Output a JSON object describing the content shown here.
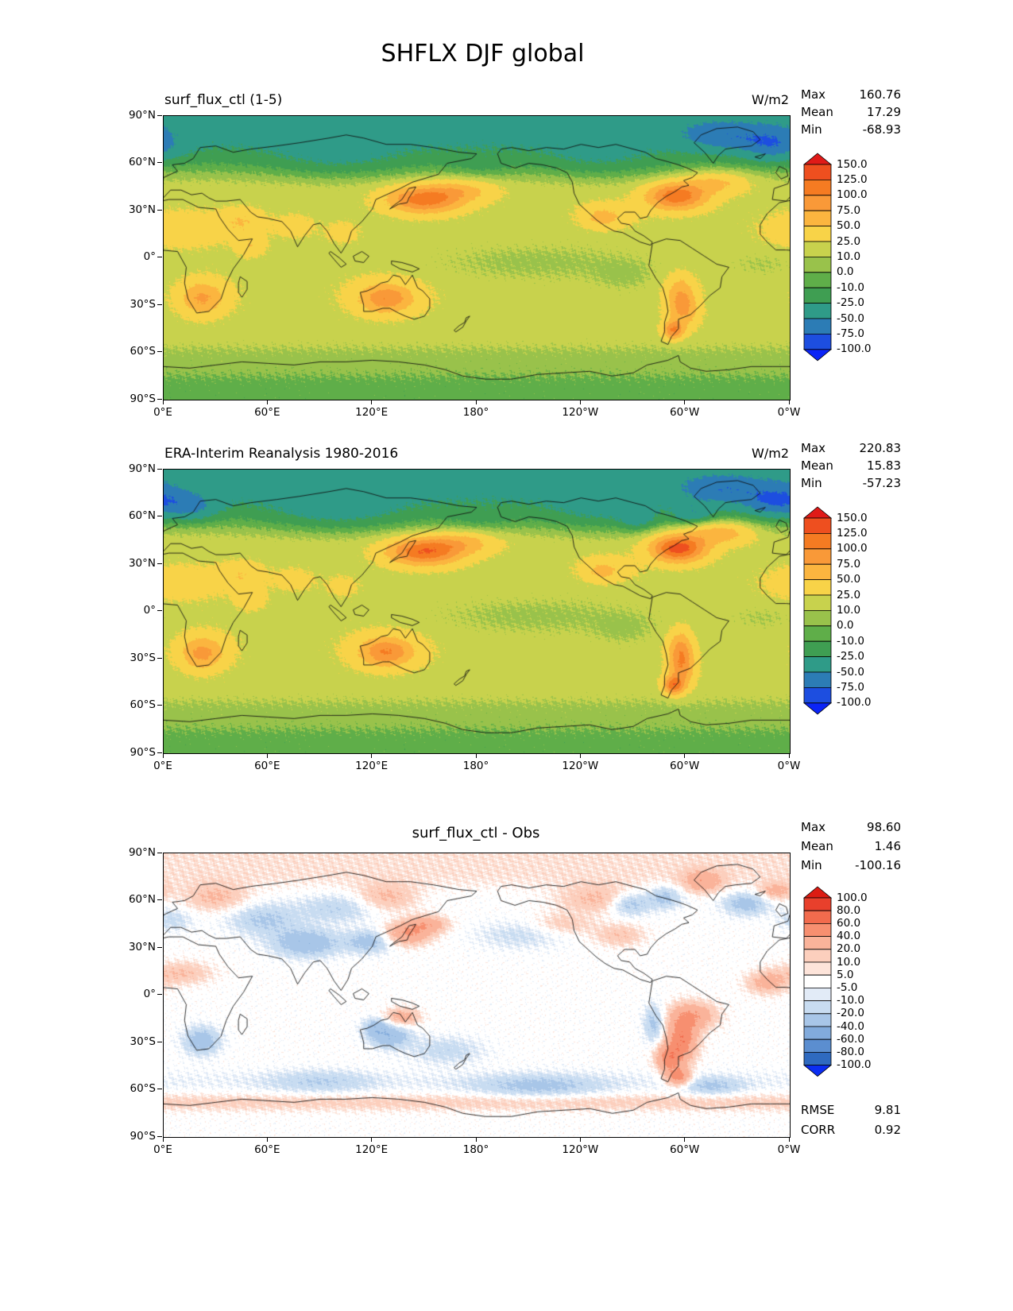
{
  "page": {
    "title": "SHFLX DJF global"
  },
  "chart_data": {
    "type": "heatmap",
    "subtype": "global lat-lon filled-contour maps, 3 stacked panels",
    "x_tick_labels": [
      "0°E",
      "60°E",
      "120°E",
      "180°",
      "120°W",
      "60°W",
      "0°W"
    ],
    "y_tick_labels": [
      "90°N",
      "60°N",
      "30°N",
      "0°",
      "30°S",
      "60°S",
      "90°S"
    ],
    "panels": [
      {
        "title": "surf_flux_ctl (1-5)",
        "units": "W/m2",
        "stats": [
          {
            "label": "Max",
            "value": "160.76"
          },
          {
            "label": "Mean",
            "value": "17.29"
          },
          {
            "label": "Min",
            "value": "-68.93"
          }
        ],
        "colorbar": {
          "tick_labels": [
            "150.0",
            "125.0",
            "100.0",
            "75.0",
            "50.0",
            "25.0",
            "10.0",
            "0.0",
            "-10.0",
            "-25.0",
            "-50.0",
            "-75.0",
            "-100.0"
          ],
          "tick_values": [
            150,
            125,
            100,
            75,
            50,
            25,
            10,
            0,
            -10,
            -25,
            -50,
            -75,
            -100
          ],
          "colors_top_to_bottom": [
            "#e01a18",
            "#ee4f1f",
            "#f57b22",
            "#f99938",
            "#fbb53f",
            "#f8d348",
            "#c8d24d",
            "#99c24b",
            "#5fae49",
            "#3f9e52",
            "#2f9b88",
            "#2c7cb5",
            "#1d4ee0",
            "#0b24f7"
          ]
        }
      },
      {
        "title": "ERA-Interim Reanalysis 1980-2016",
        "units": "W/m2",
        "stats": [
          {
            "label": "Max",
            "value": "220.83"
          },
          {
            "label": "Mean",
            "value": "15.83"
          },
          {
            "label": "Min",
            "value": "-57.23"
          }
        ],
        "colorbar": {
          "tick_labels": [
            "150.0",
            "125.0",
            "100.0",
            "75.0",
            "50.0",
            "25.0",
            "10.0",
            "0.0",
            "-10.0",
            "-25.0",
            "-50.0",
            "-75.0",
            "-100.0"
          ],
          "tick_values": [
            150,
            125,
            100,
            75,
            50,
            25,
            10,
            0,
            -10,
            -25,
            -50,
            -75,
            -100
          ],
          "colors_top_to_bottom": [
            "#e01a18",
            "#ee4f1f",
            "#f57b22",
            "#f99938",
            "#fbb53f",
            "#f8d348",
            "#c8d24d",
            "#99c24b",
            "#5fae49",
            "#3f9e52",
            "#2f9b88",
            "#2c7cb5",
            "#1d4ee0",
            "#0b24f7"
          ]
        }
      },
      {
        "title": "surf_flux_ctl - Obs",
        "units": "",
        "stats": [
          {
            "label": "Max",
            "value": "98.60"
          },
          {
            "label": "Mean",
            "value": "1.46"
          },
          {
            "label": "Min",
            "value": "-100.16"
          }
        ],
        "stats_bottom": [
          {
            "label": "RMSE",
            "value": "9.81"
          },
          {
            "label": "CORR",
            "value": "0.92"
          }
        ],
        "colorbar": {
          "tick_labels": [
            "100.0",
            "80.0",
            "60.0",
            "40.0",
            "20.0",
            "10.0",
            "5.0",
            "-5.0",
            "-10.0",
            "-20.0",
            "-40.0",
            "-60.0",
            "-80.0",
            "-100.0"
          ],
          "tick_values": [
            100,
            80,
            60,
            40,
            20,
            10,
            5,
            -5,
            -10,
            -20,
            -40,
            -60,
            -80,
            -100
          ],
          "colors_top_to_bottom": [
            "#dc1c13",
            "#e8402c",
            "#f26b4d",
            "#f78f70",
            "#fab39a",
            "#fccfbd",
            "#fde4da",
            "#ffffff",
            "#e2ebf7",
            "#c8dcf1",
            "#a8c6e8",
            "#82abdc",
            "#5b8ed0",
            "#2f6ac0",
            "#0b2df2"
          ]
        }
      }
    ]
  }
}
